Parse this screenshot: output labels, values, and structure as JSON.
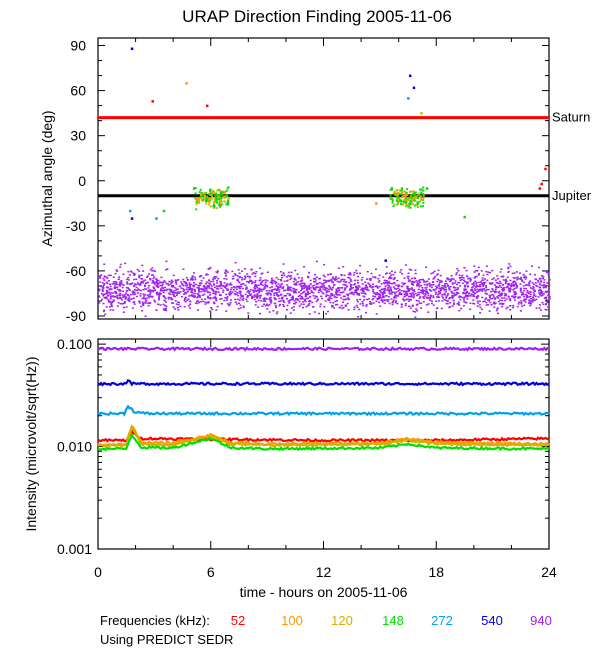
{
  "title": "URAP Direction Finding  2005-11-06",
  "colors": {
    "52": "#ff0000",
    "100": "#ff9900",
    "120": "#d4b000",
    "148": "#00e000",
    "272": "#00a0f0",
    "540": "#0000e0",
    "940": "#a020f0"
  },
  "chart_data": [
    {
      "type": "scatter",
      "ylabel": "Azimuthal angle (deg)",
      "xlim": [
        0,
        24
      ],
      "ylim": [
        -92,
        95
      ],
      "yticks": [
        90,
        60,
        30,
        0,
        -30,
        -60,
        -90
      ],
      "yticklabels": [
        "90",
        "60",
        "30",
        "0",
        "-30",
        "-60",
        "-90"
      ],
      "reference_lines": [
        {
          "label": "Saturn",
          "value": 42,
          "color": "#ff0000"
        },
        {
          "label": "Jupiter",
          "value": -10,
          "color": "#000000"
        }
      ],
      "series": [
        {
          "key": "940",
          "points": [
            [
              0.5,
              -71
            ],
            [
              1.5,
              -75
            ],
            [
              2.5,
              -70
            ],
            [
              3.5,
              -73
            ],
            [
              4.5,
              -69
            ],
            [
              5.5,
              -72
            ],
            [
              6.5,
              -76
            ],
            [
              7.5,
              -71
            ],
            [
              8.5,
              -73
            ],
            [
              9.5,
              -70
            ],
            [
              10.5,
              -74
            ],
            [
              11.5,
              -72
            ],
            [
              12.5,
              -71
            ],
            [
              13.5,
              -75
            ],
            [
              14.5,
              -70
            ],
            [
              15.5,
              -73
            ],
            [
              16.5,
              -72
            ],
            [
              17.5,
              -74
            ],
            [
              18.5,
              -71
            ],
            [
              19.5,
              -73
            ],
            [
              20.5,
              -70
            ],
            [
              21.5,
              -75
            ],
            [
              22.5,
              -72
            ],
            [
              23.5,
              -71
            ]
          ]
        },
        {
          "key": "148",
          "points": [
            [
              5.5,
              -10
            ],
            [
              5.8,
              -13
            ],
            [
              6.0,
              -8
            ],
            [
              6.3,
              -12
            ],
            [
              6.6,
              -9
            ],
            [
              6.9,
              -14
            ],
            [
              15.8,
              -9
            ],
            [
              16.1,
              -13
            ],
            [
              16.4,
              -8
            ],
            [
              16.7,
              -11
            ],
            [
              17.0,
              -15
            ],
            [
              3.5,
              -20
            ],
            [
              5.1,
              -5
            ],
            [
              17.5,
              -5
            ],
            [
              19.5,
              -24
            ]
          ]
        },
        {
          "key": "100",
          "points": [
            [
              4.7,
              65
            ],
            [
              5.2,
              -12
            ],
            [
              6.2,
              -14
            ],
            [
              14.8,
              -15
            ],
            [
              16.3,
              -10
            ]
          ]
        },
        {
          "key": "120",
          "points": [
            [
              6.0,
              -12
            ],
            [
              16.5,
              -12
            ],
            [
              17.2,
              45
            ]
          ]
        },
        {
          "key": "52",
          "points": [
            [
              2.9,
              53
            ],
            [
              5.8,
              50
            ],
            [
              23.6,
              -2
            ],
            [
              23.8,
              8
            ],
            [
              23.5,
              -5
            ]
          ]
        },
        {
          "key": "540",
          "points": [
            [
              1.8,
              88
            ],
            [
              1.8,
              -25
            ],
            [
              16.6,
              70
            ],
            [
              16.8,
              62
            ],
            [
              15.3,
              -53
            ]
          ]
        },
        {
          "key": "272",
          "points": [
            [
              1.7,
              -20
            ],
            [
              3.1,
              -25
            ],
            [
              16.5,
              55
            ]
          ]
        }
      ]
    },
    {
      "type": "line",
      "ylabel": "Intensity (microvolt/sqrt(Hz))",
      "xlabel": "time - hours on 2005-11-06",
      "xlim": [
        0,
        24
      ],
      "ylim_log10": [
        -3,
        -0.95
      ],
      "yticklabels": [
        "0.001",
        "0.010",
        "0.100"
      ],
      "xticks": [
        0,
        6,
        12,
        18,
        24
      ],
      "xticklabels": [
        "0",
        "6",
        "12",
        "18",
        "24"
      ],
      "series": [
        {
          "key": "940",
          "x": [
            0,
            24
          ],
          "y": [
            0.09,
            0.09
          ]
        },
        {
          "key": "540",
          "x": [
            0,
            1.4,
            1.6,
            1.8,
            24
          ],
          "y": [
            0.041,
            0.041,
            0.044,
            0.041,
            0.041
          ]
        },
        {
          "key": "272",
          "x": [
            0,
            1.4,
            1.6,
            1.9,
            2.5,
            24
          ],
          "y": [
            0.021,
            0.021,
            0.025,
            0.022,
            0.021,
            0.021
          ]
        },
        {
          "key": "52",
          "x": [
            0,
            1.5,
            1.8,
            2.3,
            6,
            12,
            18,
            24
          ],
          "y": [
            0.0115,
            0.0115,
            0.014,
            0.012,
            0.0118,
            0.0115,
            0.0115,
            0.012
          ]
        },
        {
          "key": "100",
          "x": [
            0,
            1.5,
            1.8,
            2.3,
            4,
            6,
            7,
            9,
            15,
            16.5,
            18,
            24
          ],
          "y": [
            0.0105,
            0.0105,
            0.015,
            0.011,
            0.0108,
            0.013,
            0.011,
            0.0106,
            0.0108,
            0.012,
            0.011,
            0.0106
          ]
        },
        {
          "key": "120",
          "x": [
            0,
            1.5,
            1.8,
            2.3,
            4,
            6,
            7,
            9,
            15,
            16.5,
            18,
            24
          ],
          "y": [
            0.0102,
            0.0102,
            0.016,
            0.0105,
            0.0104,
            0.0125,
            0.0106,
            0.0103,
            0.0105,
            0.0115,
            0.0106,
            0.0103
          ]
        },
        {
          "key": "148",
          "x": [
            0,
            1.5,
            1.8,
            2.3,
            4,
            6,
            7,
            9,
            15,
            16.5,
            18,
            24
          ],
          "y": [
            0.0095,
            0.0095,
            0.013,
            0.0098,
            0.0097,
            0.012,
            0.0098,
            0.0095,
            0.0097,
            0.0106,
            0.0097,
            0.0095
          ]
        }
      ]
    }
  ],
  "legend": {
    "label": "Frequencies (kHz):",
    "items": [
      {
        "text": "52",
        "key": "52"
      },
      {
        "text": "100",
        "key": "100"
      },
      {
        "text": "120",
        "key": "120"
      },
      {
        "text": "148",
        "key": "148"
      },
      {
        "text": "272",
        "key": "272"
      },
      {
        "text": "540",
        "key": "540"
      },
      {
        "text": "940",
        "key": "940"
      }
    ]
  },
  "footnote": "Using PREDICT SEDR"
}
